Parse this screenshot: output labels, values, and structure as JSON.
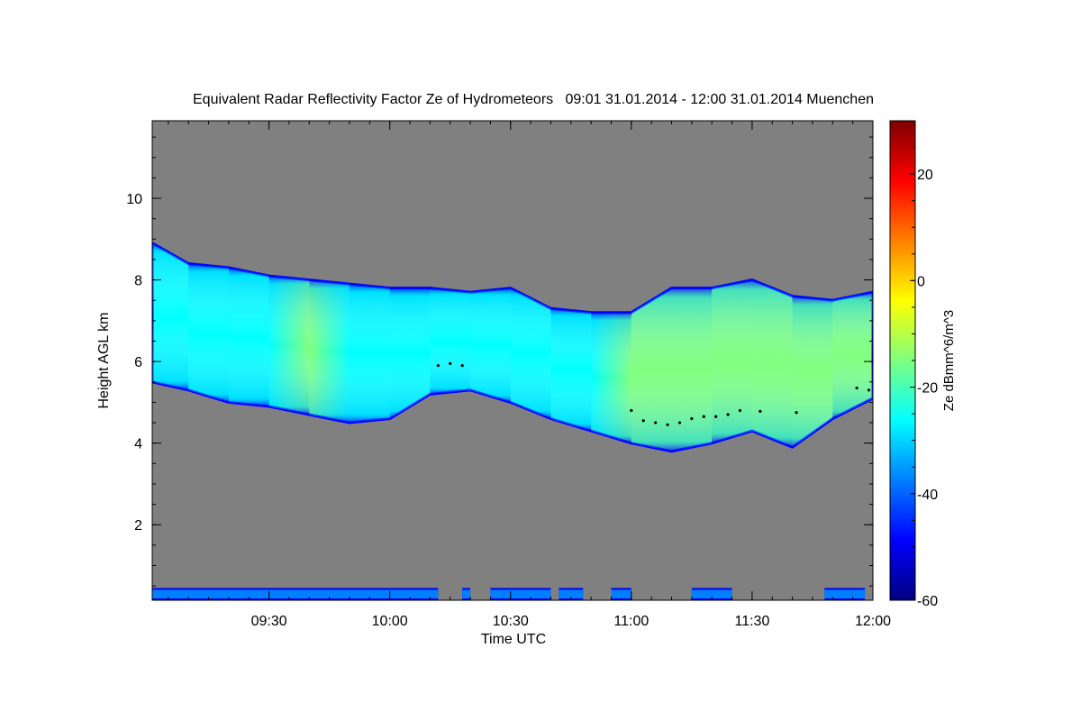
{
  "chart_data": {
    "type": "heatmap",
    "title": "Equivalent Radar Reflectivity Factor Ze of Hydrometeors   09:01 31.01.2014 - 12:00 31.01.2014 Muenchen",
    "xlabel": "Time UTC",
    "ylabel": "Height AGL km",
    "xlim": [
      "09:01",
      "12:00"
    ],
    "ylim": [
      0.15,
      11.9
    ],
    "x_ticks": [
      "09:30",
      "10:00",
      "10:30",
      "11:00",
      "11:30",
      "12:00"
    ],
    "y_ticks": [
      2,
      4,
      6,
      8,
      10
    ],
    "colorbar": {
      "label": "Ze dBmm^6/m^3",
      "range": [
        -60,
        30
      ],
      "ticks": [
        -60,
        -40,
        -20,
        0,
        20
      ],
      "colormap": [
        "#00007f",
        "#0000ff",
        "#007fff",
        "#00ffff",
        "#7fff7f",
        "#ffff00",
        "#ff7f00",
        "#ff0000",
        "#7f0000"
      ]
    },
    "background_color": "#808080",
    "cloud_layer": {
      "description_units": "time UTC, height km, Ze dBZ",
      "profile": [
        {
          "time": "09:01",
          "base_km": 5.5,
          "top_km": 8.9,
          "ze_dbz": -30
        },
        {
          "time": "09:10",
          "base_km": 5.3,
          "top_km": 8.4,
          "ze_dbz": -28
        },
        {
          "time": "09:20",
          "base_km": 5.0,
          "top_km": 8.3,
          "ze_dbz": -25
        },
        {
          "time": "09:30",
          "base_km": 4.9,
          "top_km": 8.1,
          "ze_dbz": -22
        },
        {
          "time": "09:40",
          "base_km": 4.7,
          "top_km": 8.0,
          "ze_dbz": -20
        },
        {
          "time": "09:50",
          "base_km": 4.5,
          "top_km": 7.9,
          "ze_dbz": -21
        },
        {
          "time": "10:00",
          "base_km": 4.6,
          "top_km": 7.8,
          "ze_dbz": -23
        },
        {
          "time": "10:10",
          "base_km": 5.2,
          "top_km": 7.8,
          "ze_dbz": -25
        },
        {
          "time": "10:20",
          "base_km": 5.3,
          "top_km": 7.7,
          "ze_dbz": -24
        },
        {
          "time": "10:30",
          "base_km": 5.0,
          "top_km": 7.8,
          "ze_dbz": -23
        },
        {
          "time": "10:40",
          "base_km": 4.6,
          "top_km": 7.3,
          "ze_dbz": -22
        },
        {
          "time": "10:50",
          "base_km": 4.3,
          "top_km": 7.2,
          "ze_dbz": -21
        },
        {
          "time": "11:00",
          "base_km": 4.0,
          "top_km": 7.2,
          "ze_dbz": -18
        },
        {
          "time": "11:10",
          "base_km": 3.8,
          "top_km": 7.8,
          "ze_dbz": -16
        },
        {
          "time": "11:20",
          "base_km": 4.0,
          "top_km": 7.8,
          "ze_dbz": -15
        },
        {
          "time": "11:30",
          "base_km": 4.3,
          "top_km": 8.0,
          "ze_dbz": -10
        },
        {
          "time": "11:40",
          "base_km": 3.9,
          "top_km": 7.6,
          "ze_dbz": -13
        },
        {
          "time": "11:50",
          "base_km": 4.6,
          "top_km": 7.5,
          "ze_dbz": -16
        },
        {
          "time": "12:00",
          "base_km": 5.1,
          "top_km": 7.7,
          "ze_dbz": -20
        }
      ]
    },
    "near_surface_clutter": {
      "base_km": 0.15,
      "top_km": 0.45,
      "ze_dbz": -35,
      "intervals": [
        [
          "09:01",
          "10:12"
        ],
        [
          "10:18",
          "10:20"
        ],
        [
          "10:25",
          "10:40"
        ],
        [
          "10:42",
          "10:48"
        ],
        [
          "10:55",
          "11:00"
        ],
        [
          "11:15",
          "11:25"
        ],
        [
          "11:48",
          "11:58"
        ]
      ]
    },
    "melting_layer_marks": {
      "color": "#000000",
      "points": [
        {
          "time": "10:12",
          "height_km": 5.9
        },
        {
          "time": "10:15",
          "height_km": 5.95
        },
        {
          "time": "10:18",
          "height_km": 5.9
        },
        {
          "time": "11:00",
          "height_km": 4.8
        },
        {
          "time": "11:03",
          "height_km": 4.55
        },
        {
          "time": "11:06",
          "height_km": 4.5
        },
        {
          "time": "11:09",
          "height_km": 4.45
        },
        {
          "time": "11:12",
          "height_km": 4.5
        },
        {
          "time": "11:15",
          "height_km": 4.6
        },
        {
          "time": "11:18",
          "height_km": 4.65
        },
        {
          "time": "11:21",
          "height_km": 4.65
        },
        {
          "time": "11:24",
          "height_km": 4.7
        },
        {
          "time": "11:27",
          "height_km": 4.8
        },
        {
          "time": "11:32",
          "height_km": 4.78
        },
        {
          "time": "11:41",
          "height_km": 4.75
        },
        {
          "time": "11:56",
          "height_km": 5.35
        },
        {
          "time": "11:59",
          "height_km": 5.3
        }
      ]
    }
  }
}
